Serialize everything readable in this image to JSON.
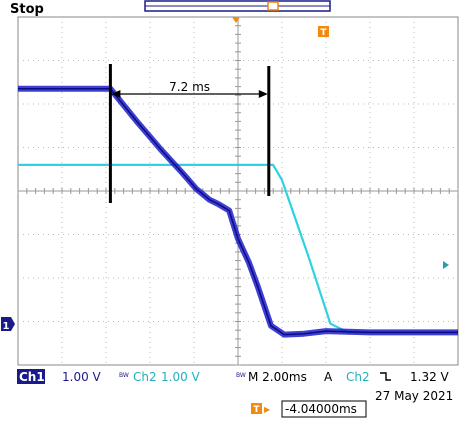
{
  "status": "Stop",
  "annotation": "7.2 ms",
  "trigger_marker": "T",
  "bottom_bar": {
    "ch1_label": "Ch1",
    "ch1_scale": "1.00 V",
    "ch1_bw": "BW",
    "ch2_label": "Ch2",
    "ch2_scale": "1.00 V",
    "ch2_bw": "BW",
    "timebase": "M 2.00ms",
    "trigger_mode": "A",
    "trigger_source": "Ch2",
    "trigger_slope": "falling",
    "trigger_level": "1.32 V"
  },
  "date": "27 May 2021",
  "trigger_position": "-4.04000ms",
  "colors": {
    "grid_bg": "#ffffff",
    "grid_line": "#b8b8b8",
    "ch1": "#1f1fc8",
    "ch2": "#23d0df",
    "accent_orange": "#f08a10",
    "label_bg": "#1a1a8a"
  },
  "chart_data": {
    "type": "line",
    "x_unit": "ms",
    "y_unit": "V",
    "xlim": [
      -10,
      10
    ],
    "ylim": [
      -4,
      4
    ],
    "grid": true,
    "series": [
      {
        "name": "Ch1",
        "x": [
          -10,
          -5.8,
          -4.6,
          -3.5,
          -2.5,
          -1.9,
          -1.3,
          -0.9,
          -0.4,
          0.0,
          0.5,
          0.9,
          1.5,
          2.1,
          3.0,
          4.0,
          6.0,
          10.0
        ],
        "y": [
          2.35,
          2.35,
          1.6,
          0.95,
          0.4,
          0.05,
          -0.2,
          -0.3,
          -0.45,
          -1.1,
          -1.65,
          -2.2,
          -3.1,
          -3.3,
          -3.28,
          -3.22,
          -3.25,
          -3.25
        ]
      },
      {
        "name": "Ch2",
        "x": [
          -10,
          1.6,
          2.0,
          3.2,
          4.2,
          5.0,
          10.0
        ],
        "y": [
          0.6,
          0.6,
          0.25,
          -1.5,
          -3.05,
          -3.25,
          -3.25
        ]
      }
    ],
    "ch1_ground_level": -3.25,
    "measurement": {
      "x_start": -5.8,
      "x_end": 1.4
    }
  }
}
